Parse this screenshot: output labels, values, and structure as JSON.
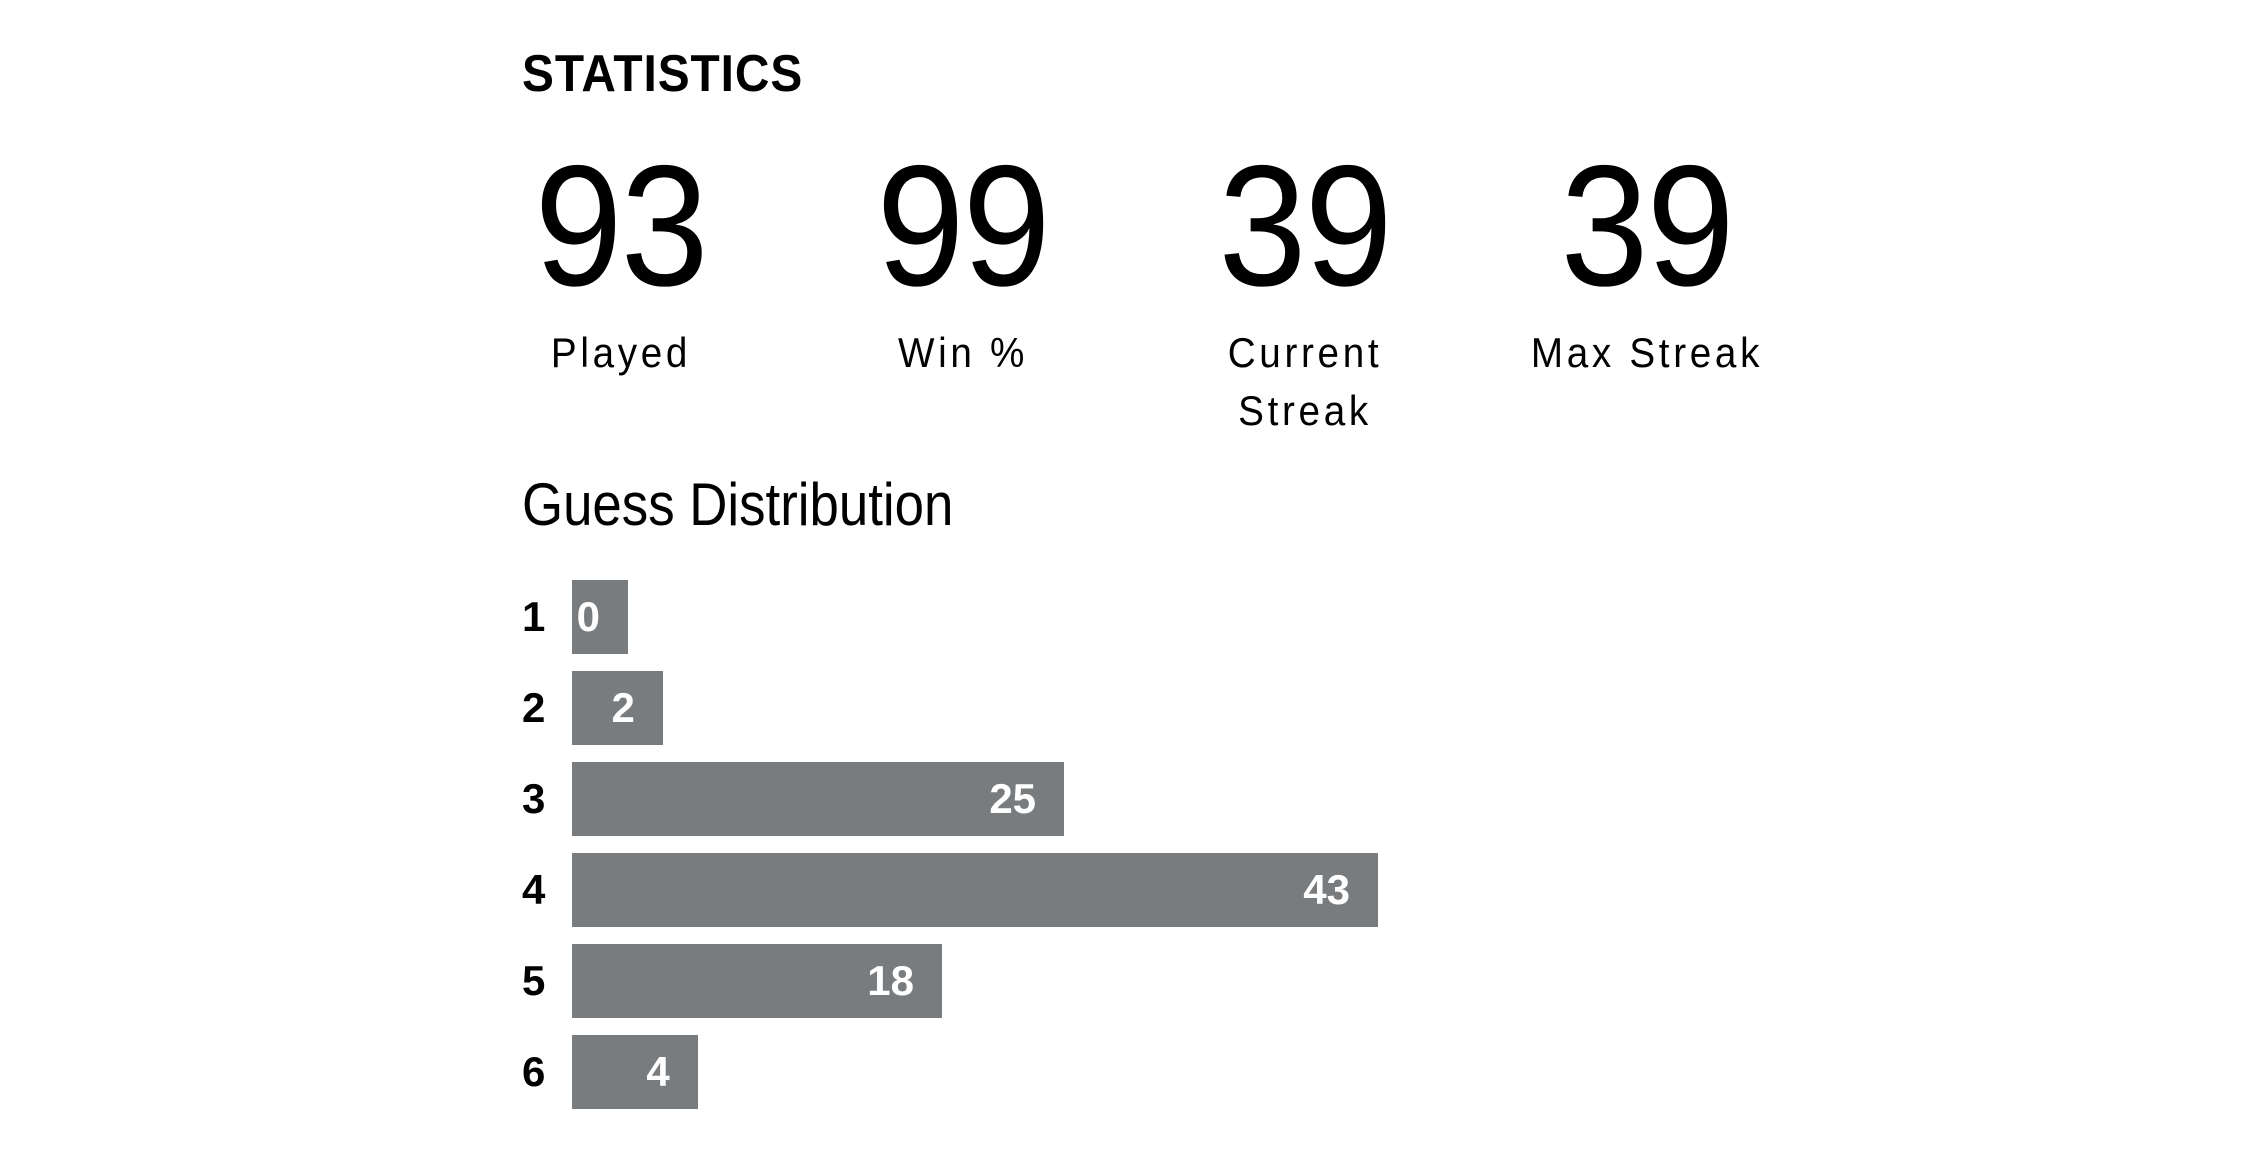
{
  "title": "STATISTICS",
  "stats": [
    {
      "value": "93",
      "label": "Played"
    },
    {
      "value": "99",
      "label": "Win %"
    },
    {
      "value": "39",
      "label": "Current Streak"
    },
    {
      "value": "39",
      "label": "Max Streak"
    }
  ],
  "guess_distribution_title": "Guess Distribution",
  "colors": {
    "bar": "#787c7e",
    "bar_text": "#ffffff"
  },
  "chart_data": {
    "type": "bar",
    "orientation": "horizontal",
    "title": "Guess Distribution",
    "categories": [
      "1",
      "2",
      "3",
      "4",
      "5",
      "6"
    ],
    "values": [
      0,
      2,
      25,
      43,
      18,
      4
    ]
  }
}
